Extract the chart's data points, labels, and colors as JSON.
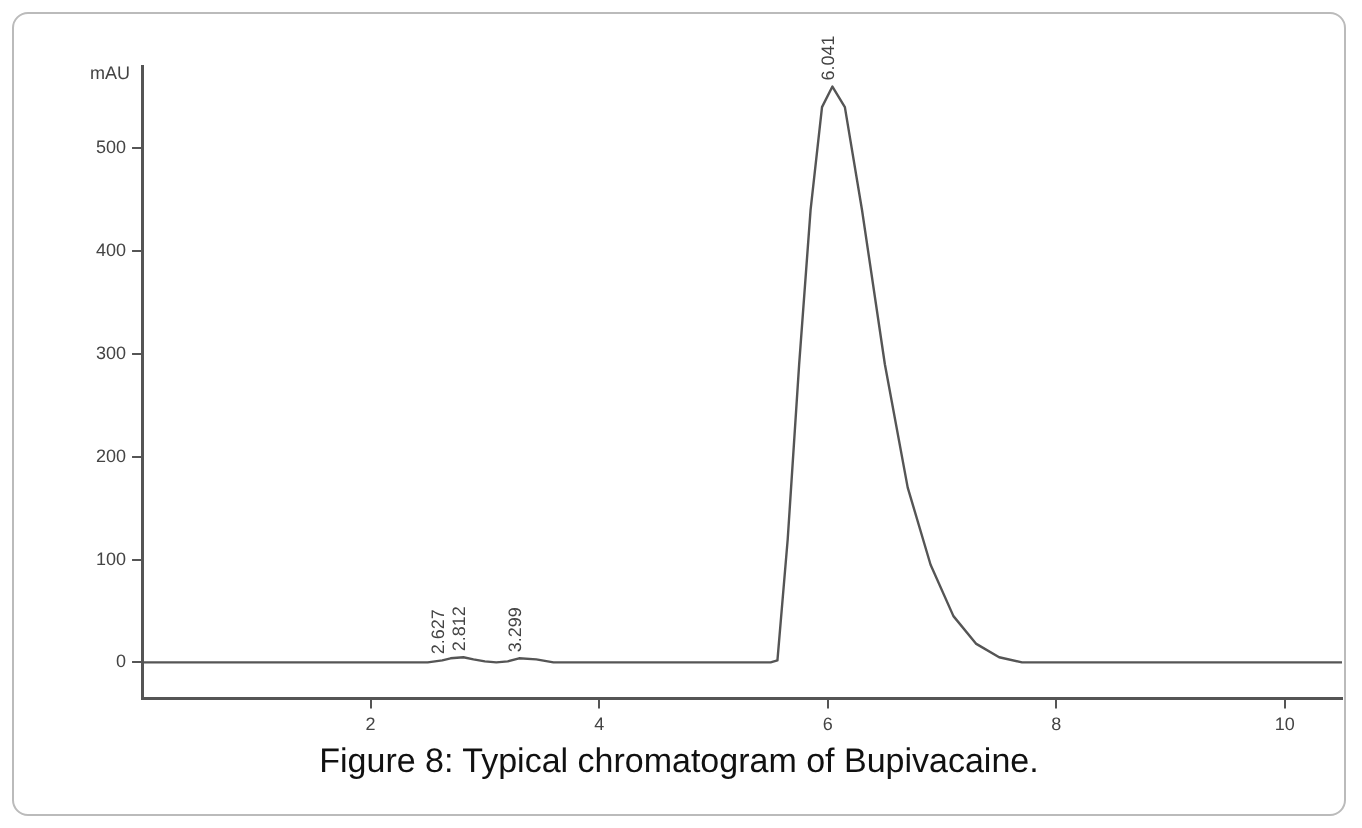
{
  "chart_data": {
    "type": "line",
    "title": "Figure 8: Typical chromatogram of Bupivacaine.",
    "ylabel": "mAU",
    "x": [
      0,
      2.5,
      2.627,
      2.7,
      2.812,
      2.9,
      3.0,
      3.1,
      3.2,
      3.299,
      3.45,
      3.6,
      5.5,
      5.56,
      5.65,
      5.75,
      5.85,
      5.95,
      6.041,
      6.15,
      6.3,
      6.5,
      6.7,
      6.9,
      7.1,
      7.3,
      7.5,
      7.7,
      10.5
    ],
    "series": [
      {
        "color": "#555555",
        "values": [
          0,
          0,
          2,
          4,
          5,
          3,
          1,
          0,
          1,
          4,
          3,
          0,
          0,
          2,
          120,
          290,
          440,
          540,
          560,
          540,
          440,
          290,
          170,
          95,
          45,
          18,
          5,
          0,
          0
        ]
      }
    ],
    "xlim": [
      0,
      10.5
    ],
    "xticks": [
      2,
      4,
      6,
      8,
      10
    ],
    "ylim": [
      -35,
      580
    ],
    "yticks": [
      0,
      100,
      200,
      300,
      400,
      500
    ],
    "grid": false,
    "legend": false,
    "marker": "none",
    "line_style": "solid",
    "annotations": [
      {
        "text": "2.627",
        "x": 2.627,
        "y": 2
      },
      {
        "text": "2.812",
        "x": 2.812,
        "y": 5
      },
      {
        "text": "3.299",
        "x": 3.299,
        "y": 4
      },
      {
        "text": "6.041",
        "x": 6.041,
        "y": 560
      }
    ]
  }
}
